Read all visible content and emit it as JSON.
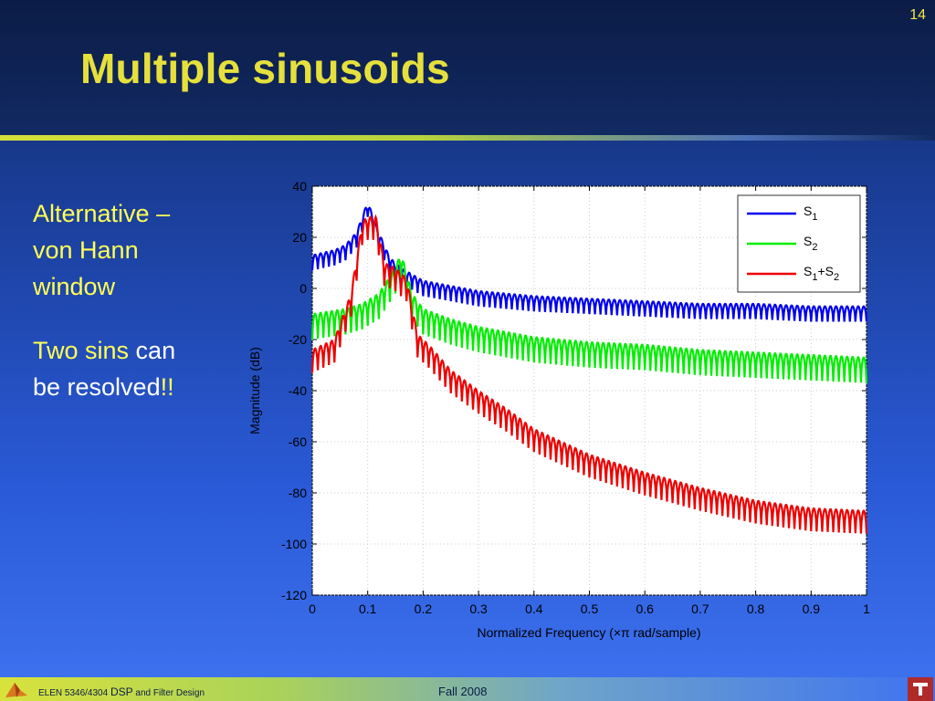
{
  "slide": {
    "number": "14",
    "title": "Multiple sinusoids",
    "bullet1": [
      "Alternative –",
      "von Hann",
      "window"
    ],
    "bullet2": {
      "part1": "Two sins",
      "part2": " can",
      "line2a": "be resolved",
      "line2b": "!!"
    }
  },
  "footer": {
    "course_prefix": "ELEN 5346/4304 ",
    "course_big": "DSP",
    "course_suffix": " and Filter Design",
    "term": "Fall 2008"
  },
  "chart_data": {
    "type": "line",
    "xlabel": "Normalized Frequency  (×π rad/sample)",
    "ylabel": "Magnitude (dB)",
    "xlim": [
      0,
      1
    ],
    "ylim": [
      -120,
      40
    ],
    "xticks": [
      "0",
      "0.1",
      "0.2",
      "0.3",
      "0.4",
      "0.5",
      "0.6",
      "0.7",
      "0.8",
      "0.9",
      "1"
    ],
    "yticks": [
      "40",
      "20",
      "0",
      "-20",
      "-40",
      "-60",
      "-80",
      "-100",
      "-120"
    ],
    "grid": true,
    "legend_position": "top-right",
    "colors": {
      "S1": "#0000ee",
      "S2": "#00ee00",
      "S12": "#ee0000"
    },
    "legend": [
      "S1",
      "S2",
      "S1+S2"
    ],
    "series": [
      {
        "name": "S1",
        "x": [
          0,
          0.02,
          0.04,
          0.06,
          0.08,
          0.1,
          0.12,
          0.14,
          0.16,
          0.2,
          0.25,
          0.3,
          0.35,
          0.4,
          0.5,
          0.6,
          0.7,
          0.8,
          0.9,
          1.0
        ],
        "y": [
          13,
          14,
          15,
          17,
          22,
          34,
          22,
          12,
          8,
          3,
          1,
          -1,
          -2,
          -3,
          -4,
          -5,
          -6,
          -6,
          -7,
          -7
        ]
      },
      {
        "name": "S2",
        "x": [
          0,
          0.03,
          0.06,
          0.09,
          0.12,
          0.15,
          0.16,
          0.18,
          0.2,
          0.25,
          0.3,
          0.35,
          0.4,
          0.5,
          0.6,
          0.7,
          0.8,
          0.9,
          1.0
        ],
        "y": [
          -10,
          -9,
          -8,
          -6,
          -2,
          8,
          14,
          -2,
          -8,
          -12,
          -15,
          -17,
          -19,
          -21,
          -22,
          -24,
          -25,
          -26,
          -27
        ]
      },
      {
        "name": "S1+S2",
        "x": [
          0,
          0.04,
          0.07,
          0.09,
          0.1,
          0.115,
          0.13,
          0.15,
          0.17,
          0.19,
          0.21,
          0.25,
          0.3,
          0.35,
          0.4,
          0.45,
          0.5,
          0.6,
          0.7,
          0.8,
          0.9,
          1.0
        ],
        "y": [
          -24,
          -20,
          -2,
          26,
          28,
          28,
          10,
          8,
          4,
          -18,
          -22,
          -32,
          -40,
          -47,
          -55,
          -60,
          -65,
          -72,
          -78,
          -83,
          -86,
          -87
        ]
      }
    ]
  }
}
